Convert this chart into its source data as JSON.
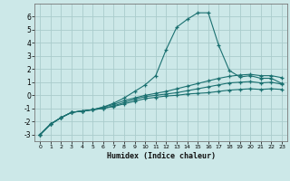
{
  "xlabel": "Humidex (Indice chaleur)",
  "ylabel": "",
  "xlim": [
    -0.5,
    23.5
  ],
  "ylim": [
    -3.5,
    7.0
  ],
  "yticks": [
    -3,
    -2,
    -1,
    0,
    1,
    2,
    3,
    4,
    5,
    6
  ],
  "xticks": [
    0,
    1,
    2,
    3,
    4,
    5,
    6,
    7,
    8,
    9,
    10,
    11,
    12,
    13,
    14,
    15,
    16,
    17,
    18,
    19,
    20,
    21,
    22,
    23
  ],
  "background_color": "#cce8e8",
  "grid_color": "#aacccc",
  "line_color": "#1a7070",
  "lines": [
    {
      "x": [
        0,
        1,
        2,
        3,
        4,
        5,
        6,
        7,
        8,
        9,
        10,
        11,
        12,
        13,
        14,
        15,
        16,
        17,
        18,
        19,
        20,
        21,
        22,
        23
      ],
      "y": [
        -3.0,
        -2.2,
        -1.7,
        -1.3,
        -1.2,
        -1.1,
        -0.9,
        -0.6,
        -0.2,
        0.3,
        0.8,
        1.5,
        3.5,
        5.2,
        5.8,
        6.3,
        6.3,
        3.8,
        1.9,
        1.4,
        1.5,
        1.3,
        1.3,
        0.9
      ]
    },
    {
      "x": [
        0,
        1,
        2,
        3,
        4,
        5,
        6,
        7,
        8,
        9,
        10,
        11,
        12,
        13,
        14,
        15,
        16,
        17,
        18,
        19,
        20,
        21,
        22,
        23
      ],
      "y": [
        -3.0,
        -2.2,
        -1.7,
        -1.3,
        -1.2,
        -1.1,
        -0.9,
        -0.7,
        -0.4,
        -0.2,
        0.0,
        0.15,
        0.3,
        0.5,
        0.7,
        0.9,
        1.1,
        1.3,
        1.45,
        1.55,
        1.6,
        1.5,
        1.5,
        1.35
      ]
    },
    {
      "x": [
        0,
        1,
        2,
        3,
        4,
        5,
        6,
        7,
        8,
        9,
        10,
        11,
        12,
        13,
        14,
        15,
        16,
        17,
        18,
        19,
        20,
        21,
        22,
        23
      ],
      "y": [
        -3.0,
        -2.2,
        -1.7,
        -1.3,
        -1.2,
        -1.1,
        -1.0,
        -0.8,
        -0.55,
        -0.3,
        -0.1,
        0.0,
        0.1,
        0.2,
        0.35,
        0.5,
        0.65,
        0.8,
        0.95,
        1.0,
        1.05,
        0.95,
        1.0,
        0.85
      ]
    },
    {
      "x": [
        0,
        1,
        2,
        3,
        4,
        5,
        6,
        7,
        8,
        9,
        10,
        11,
        12,
        13,
        14,
        15,
        16,
        17,
        18,
        19,
        20,
        21,
        22,
        23
      ],
      "y": [
        -3.0,
        -2.2,
        -1.7,
        -1.3,
        -1.2,
        -1.1,
        -1.0,
        -0.85,
        -0.65,
        -0.45,
        -0.25,
        -0.15,
        -0.05,
        0.0,
        0.1,
        0.15,
        0.2,
        0.3,
        0.4,
        0.45,
        0.5,
        0.45,
        0.5,
        0.45
      ]
    }
  ]
}
